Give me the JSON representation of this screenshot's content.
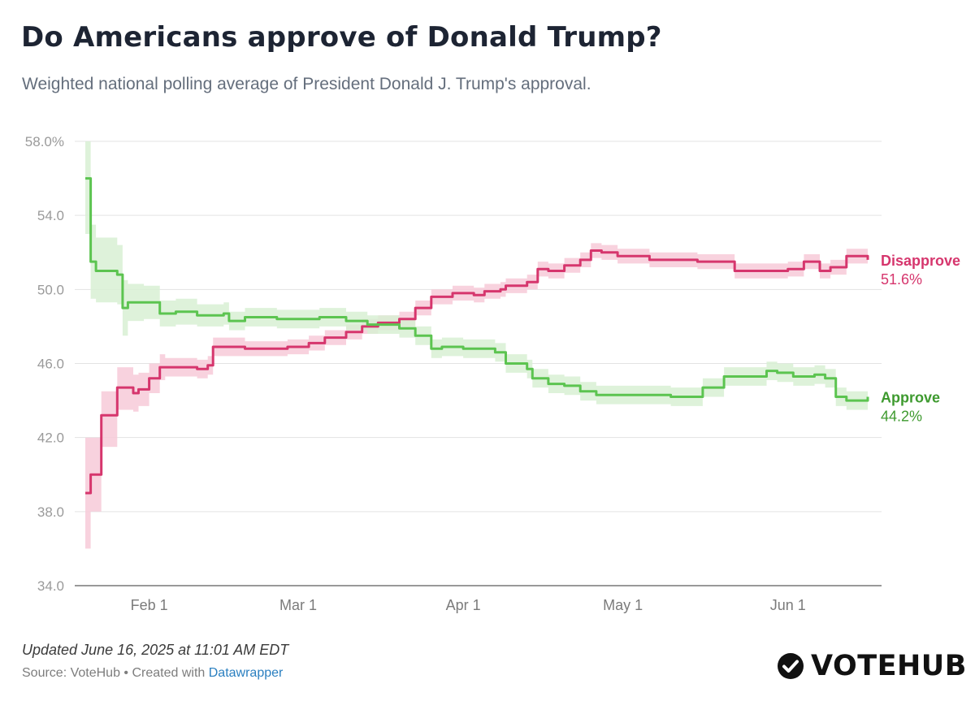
{
  "header": {
    "title": "Do Americans approve of Donald Trump?",
    "subtitle": "Weighted national polling average of President Donald J. Trump's approval."
  },
  "footer": {
    "updated": "Updated June 16, 2025 at 11:01 AM EDT",
    "source_prefix": "Source: VoteHub • Created with ",
    "source_link": "Datawrapper",
    "brand": "VOTEHUB",
    "brand_icon": "check-circle-icon"
  },
  "chart_data": {
    "type": "line",
    "title": "Do Americans approve of Donald Trump?",
    "subtitle": "Weighted national polling average of President Donald J. Trump's approval.",
    "xlabel": "",
    "ylabel": "",
    "ylim": [
      34,
      58
    ],
    "xlim": [
      "2025-01-20",
      "2025-06-16"
    ],
    "y_ticks": [
      34,
      38,
      42,
      46,
      50,
      54,
      58
    ],
    "y_tick_labels": [
      "34.0",
      "38.0",
      "42.0",
      "46.0",
      "50.0",
      "54.0",
      "58.0%"
    ],
    "x_ticks": [
      "2025-02-01",
      "2025-03-01",
      "2025-04-01",
      "2025-05-01",
      "2025-06-01"
    ],
    "x_tick_labels": [
      "Feb 1",
      "Mar 1",
      "Apr 1",
      "May 1",
      "Jun 1"
    ],
    "grid": true,
    "legend": "direct labels at line ends (right)",
    "series": [
      {
        "name": "Disapprove",
        "end_label": "51.6%",
        "color": "#d6366d",
        "band_color": "#f7cad8",
        "x": [
          "2025-01-20",
          "2025-01-21",
          "2025-01-22",
          "2025-01-23",
          "2025-01-26",
          "2025-01-29",
          "2025-01-30",
          "2025-02-01",
          "2025-02-03",
          "2025-02-04",
          "2025-02-10",
          "2025-02-11",
          "2025-02-12",
          "2025-02-13",
          "2025-02-19",
          "2025-02-20",
          "2025-02-27",
          "2025-03-03",
          "2025-03-06",
          "2025-03-10",
          "2025-03-13",
          "2025-03-16",
          "2025-03-20",
          "2025-03-23",
          "2025-03-26",
          "2025-03-30",
          "2025-04-03",
          "2025-04-05",
          "2025-04-08",
          "2025-04-09",
          "2025-04-13",
          "2025-04-15",
          "2025-04-17",
          "2025-04-20",
          "2025-04-23",
          "2025-04-25",
          "2025-04-27",
          "2025-04-30",
          "2025-05-06",
          "2025-05-15",
          "2025-05-19",
          "2025-05-22",
          "2025-06-01",
          "2025-06-04",
          "2025-06-07",
          "2025-06-09",
          "2025-06-12",
          "2025-06-16"
        ],
        "values": [
          39.0,
          40.0,
          40.0,
          43.2,
          44.7,
          44.4,
          44.6,
          45.2,
          45.8,
          45.8,
          45.7,
          45.7,
          45.9,
          46.9,
          46.8,
          46.8,
          46.9,
          47.1,
          47.4,
          47.7,
          48.0,
          48.2,
          48.4,
          49.0,
          49.6,
          49.8,
          49.7,
          49.9,
          50.0,
          50.2,
          50.4,
          51.1,
          51.0,
          51.3,
          51.6,
          52.1,
          52.0,
          51.8,
          51.6,
          51.5,
          51.5,
          51.0,
          51.1,
          51.5,
          51.0,
          51.2,
          51.8,
          51.6
        ],
        "band": [
          [
            36.0,
            42.0
          ],
          [
            38.0,
            42.0
          ],
          [
            38.0,
            42.0
          ],
          [
            41.5,
            44.5
          ],
          [
            43.5,
            45.8
          ],
          [
            43.4,
            45.4
          ],
          [
            43.7,
            45.5
          ],
          [
            44.4,
            46.0
          ],
          [
            45.1,
            46.5
          ],
          [
            45.3,
            46.3
          ],
          [
            45.2,
            46.2
          ],
          [
            45.2,
            46.2
          ],
          [
            45.4,
            46.4
          ],
          [
            46.4,
            47.4
          ],
          [
            46.4,
            47.2
          ],
          [
            46.4,
            47.2
          ],
          [
            46.5,
            47.3
          ],
          [
            46.7,
            47.5
          ],
          [
            47.0,
            47.8
          ],
          [
            47.3,
            48.1
          ],
          [
            47.6,
            48.4
          ],
          [
            47.8,
            48.6
          ],
          [
            48.0,
            48.8
          ],
          [
            48.6,
            49.4
          ],
          [
            49.2,
            50.0
          ],
          [
            49.4,
            50.2
          ],
          [
            49.3,
            50.1
          ],
          [
            49.5,
            50.3
          ],
          [
            49.6,
            50.4
          ],
          [
            49.8,
            50.6
          ],
          [
            50.0,
            50.8
          ],
          [
            50.7,
            51.5
          ],
          [
            50.6,
            51.4
          ],
          [
            50.9,
            51.7
          ],
          [
            51.2,
            52.0
          ],
          [
            51.7,
            52.5
          ],
          [
            51.6,
            52.4
          ],
          [
            51.4,
            52.2
          ],
          [
            51.2,
            52.0
          ],
          [
            51.1,
            51.9
          ],
          [
            51.1,
            51.9
          ],
          [
            50.6,
            51.4
          ],
          [
            50.7,
            51.5
          ],
          [
            51.1,
            51.9
          ],
          [
            50.6,
            51.4
          ],
          [
            50.8,
            51.6
          ],
          [
            51.4,
            52.2
          ],
          [
            51.2,
            52.0
          ]
        ]
      },
      {
        "name": "Approve",
        "end_label": "44.2%",
        "color": "#5cc450",
        "band_color": "#d8f0d3",
        "x": [
          "2025-01-20",
          "2025-01-21",
          "2025-01-22",
          "2025-01-26",
          "2025-01-27",
          "2025-01-28",
          "2025-01-31",
          "2025-02-03",
          "2025-02-06",
          "2025-02-10",
          "2025-02-15",
          "2025-02-16",
          "2025-02-18",
          "2025-02-19",
          "2025-02-25",
          "2025-02-27",
          "2025-03-05",
          "2025-03-10",
          "2025-03-14",
          "2025-03-20",
          "2025-03-23",
          "2025-03-26",
          "2025-03-28",
          "2025-04-01",
          "2025-04-07",
          "2025-04-09",
          "2025-04-13",
          "2025-04-14",
          "2025-04-17",
          "2025-04-20",
          "2025-04-23",
          "2025-04-26",
          "2025-05-03",
          "2025-05-10",
          "2025-05-12",
          "2025-05-16",
          "2025-05-19",
          "2025-05-20",
          "2025-05-28",
          "2025-05-30",
          "2025-06-02",
          "2025-06-06",
          "2025-06-08",
          "2025-06-10",
          "2025-06-12",
          "2025-06-16"
        ],
        "values": [
          56.0,
          51.5,
          51.0,
          50.8,
          49.0,
          49.3,
          49.3,
          48.7,
          48.8,
          48.6,
          48.7,
          48.3,
          48.3,
          48.5,
          48.4,
          48.4,
          48.5,
          48.3,
          48.1,
          47.9,
          47.5,
          46.8,
          46.9,
          46.8,
          46.6,
          46.0,
          45.7,
          45.2,
          44.9,
          44.8,
          44.5,
          44.3,
          44.3,
          44.2,
          44.2,
          44.7,
          44.7,
          45.3,
          45.6,
          45.5,
          45.3,
          45.4,
          45.2,
          44.2,
          44.0,
          44.2
        ],
        "band": [
          [
            53.0,
            58.0
          ],
          [
            49.5,
            53.5
          ],
          [
            49.3,
            52.8
          ],
          [
            49.2,
            52.4
          ],
          [
            47.5,
            50.5
          ],
          [
            48.3,
            50.3
          ],
          [
            48.4,
            50.2
          ],
          [
            48.0,
            49.4
          ],
          [
            48.1,
            49.5
          ],
          [
            48.0,
            49.2
          ],
          [
            48.1,
            49.3
          ],
          [
            47.8,
            48.8
          ],
          [
            47.8,
            48.8
          ],
          [
            48.0,
            49.0
          ],
          [
            47.9,
            48.9
          ],
          [
            47.9,
            48.9
          ],
          [
            48.0,
            49.0
          ],
          [
            47.8,
            48.8
          ],
          [
            47.6,
            48.6
          ],
          [
            47.4,
            48.4
          ],
          [
            47.0,
            48.0
          ],
          [
            46.3,
            47.3
          ],
          [
            46.4,
            47.4
          ],
          [
            46.3,
            47.3
          ],
          [
            46.1,
            47.1
          ],
          [
            45.5,
            46.5
          ],
          [
            45.2,
            46.2
          ],
          [
            44.7,
            45.7
          ],
          [
            44.4,
            45.4
          ],
          [
            44.3,
            45.3
          ],
          [
            44.0,
            45.0
          ],
          [
            43.8,
            44.8
          ],
          [
            43.8,
            44.8
          ],
          [
            43.7,
            44.7
          ],
          [
            43.7,
            44.7
          ],
          [
            44.2,
            45.2
          ],
          [
            44.2,
            45.2
          ],
          [
            44.8,
            45.8
          ],
          [
            45.1,
            46.1
          ],
          [
            45.0,
            46.0
          ],
          [
            44.8,
            45.8
          ],
          [
            44.9,
            45.9
          ],
          [
            44.7,
            45.7
          ],
          [
            43.7,
            44.7
          ],
          [
            43.5,
            44.5
          ],
          [
            43.7,
            44.7
          ]
        ]
      }
    ]
  }
}
